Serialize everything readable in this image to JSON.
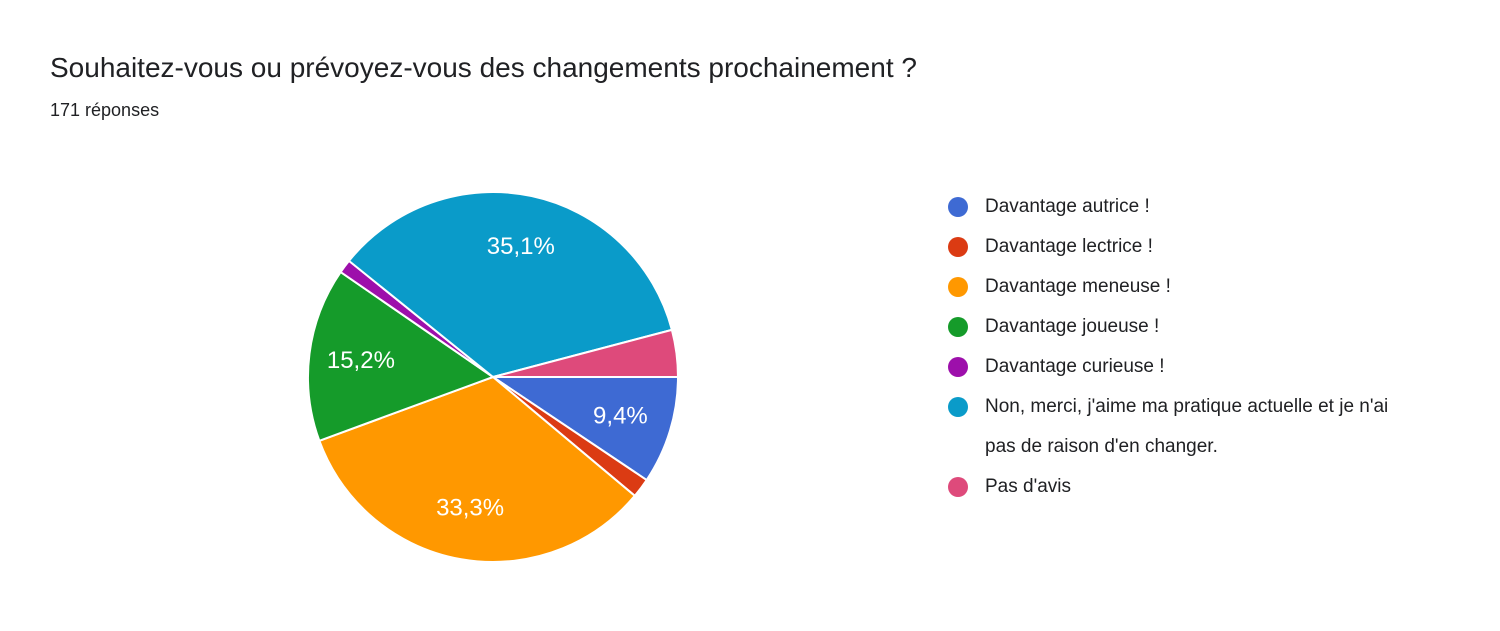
{
  "header": {
    "title": "Souhaitez-vous ou prévoyez-vous des changements prochainement ?",
    "responses_count": "171 réponses"
  },
  "chart_data": {
    "type": "pie",
    "title": "Souhaitez-vous ou prévoyez-vous des changements prochainement ?",
    "subtitle": "171 réponses",
    "legend_position": "right",
    "start_angle_deg": 0,
    "direction": "clockwise",
    "label_color": "#ffffff",
    "slice_gap_color": "#ffffff",
    "slices": [
      {
        "label": "Davantage autrice !",
        "percent": 9.4,
        "display_percent": "9,4%",
        "color": "#3E6AD3"
      },
      {
        "label": "Davantage lectrice !",
        "percent": 1.7,
        "display_percent": "",
        "color": "#DB3B13"
      },
      {
        "label": "Davantage meneuse !",
        "percent": 33.3,
        "display_percent": "33,3%",
        "color": "#FF9800"
      },
      {
        "label": "Davantage joueuse !",
        "percent": 15.2,
        "display_percent": "15,2%",
        "color": "#159B2A"
      },
      {
        "label": "Davantage curieuse !",
        "percent": 1.2,
        "display_percent": "",
        "color": "#9D0FAB"
      },
      {
        "label": "Non, merci, j'aime ma pratique actuelle et je n'ai pas de raison d'en changer.",
        "percent": 35.1,
        "display_percent": "35,1%",
        "color": "#0A9BC9"
      },
      {
        "label": "Pas d'avis",
        "percent": 4.1,
        "display_percent": "",
        "color": "#DE4A7B"
      }
    ]
  }
}
